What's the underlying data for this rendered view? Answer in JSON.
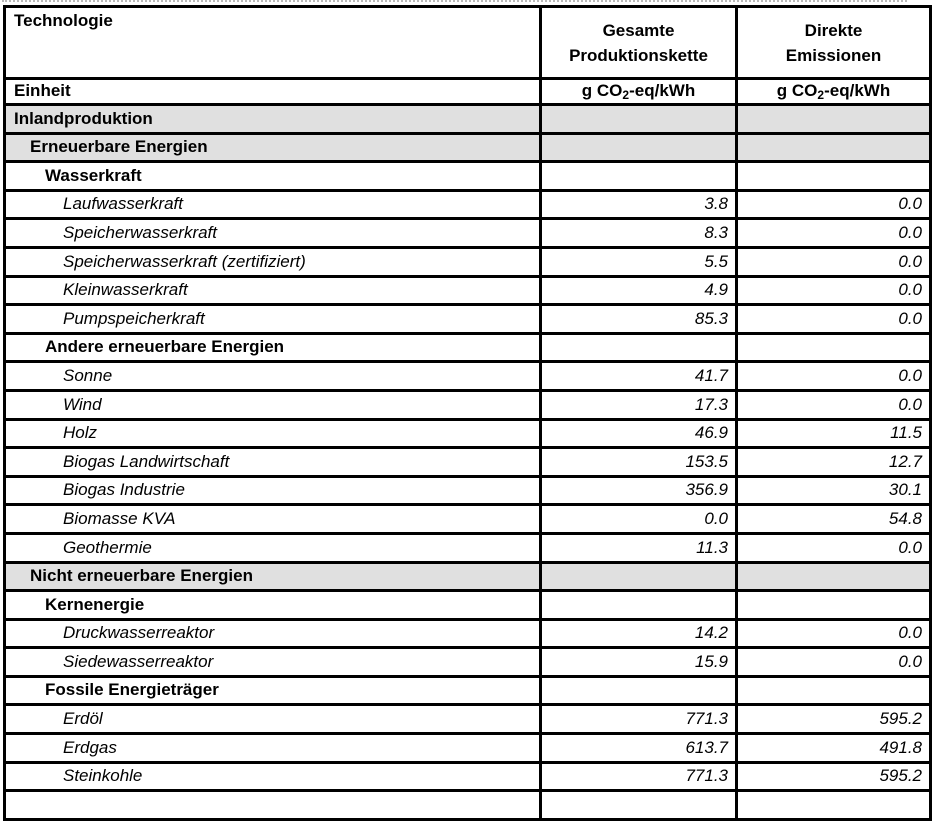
{
  "table": {
    "columns": {
      "technology": "Technologie",
      "total_chain_line1": "Gesamte",
      "total_chain_line2": "Produktionskette",
      "direct_line1": "Direkte",
      "direct_line2": "Emissionen"
    },
    "unit_row": {
      "label": "Einheit",
      "unit_pre": "g CO",
      "unit_sub": "2",
      "unit_post": "-eq/kWh"
    },
    "rows": [
      {
        "label": "Inlandproduktion",
        "style": "section",
        "level": 0,
        "total": "",
        "direct": ""
      },
      {
        "label": "Erneuerbare Energien",
        "style": "section",
        "level": 1,
        "total": "",
        "direct": ""
      },
      {
        "label": "Wasserkraft",
        "style": "group",
        "level": 2,
        "total": "",
        "direct": ""
      },
      {
        "label": "Laufwasserkraft",
        "style": "item",
        "level": 3,
        "total": "3.8",
        "direct": "0.0"
      },
      {
        "label": "Speicherwasserkraft",
        "style": "item",
        "level": 3,
        "total": "8.3",
        "direct": "0.0"
      },
      {
        "label": "Speicherwasserkraft (zertifiziert)",
        "style": "item",
        "level": 3,
        "total": "5.5",
        "direct": "0.0"
      },
      {
        "label": "Kleinwasserkraft",
        "style": "item",
        "level": 3,
        "total": "4.9",
        "direct": "0.0"
      },
      {
        "label": "Pumpspeicherkraft",
        "style": "item",
        "level": 3,
        "total": "85.3",
        "direct": "0.0"
      },
      {
        "label": "Andere erneuerbare Energien",
        "style": "group",
        "level": 2,
        "total": "",
        "direct": ""
      },
      {
        "label": "Sonne",
        "style": "item",
        "level": 3,
        "total": "41.7",
        "direct": "0.0"
      },
      {
        "label": "Wind",
        "style": "item",
        "level": 3,
        "total": "17.3",
        "direct": "0.0"
      },
      {
        "label": "Holz",
        "style": "item",
        "level": 3,
        "total": "46.9",
        "direct": "11.5"
      },
      {
        "label": "Biogas Landwirtschaft",
        "style": "item",
        "level": 3,
        "total": "153.5",
        "direct": "12.7"
      },
      {
        "label": "Biogas Industrie",
        "style": "item",
        "level": 3,
        "total": "356.9",
        "direct": "30.1"
      },
      {
        "label": "Biomasse KVA",
        "style": "item",
        "level": 3,
        "total": "0.0",
        "direct": "54.8"
      },
      {
        "label": "Geothermie",
        "style": "item",
        "level": 3,
        "total": "11.3",
        "direct": "0.0"
      },
      {
        "label": "Nicht erneuerbare Energien",
        "style": "section",
        "level": 1,
        "total": "",
        "direct": ""
      },
      {
        "label": "Kernenergie",
        "style": "group",
        "level": 2,
        "total": "",
        "direct": ""
      },
      {
        "label": "Druckwasserreaktor",
        "style": "item",
        "level": 3,
        "total": "14.2",
        "direct": "0.0"
      },
      {
        "label": "Siedewasserreaktor",
        "style": "item",
        "level": 3,
        "total": "15.9",
        "direct": "0.0"
      },
      {
        "label": "Fossile Energieträger",
        "style": "group",
        "level": 2,
        "total": "",
        "direct": ""
      },
      {
        "label": "Erdöl",
        "style": "item",
        "level": 3,
        "total": "771.3",
        "direct": "595.2"
      },
      {
        "label": "Erdgas",
        "style": "item",
        "level": 3,
        "total": "613.7",
        "direct": "491.8"
      },
      {
        "label": "Steinkohle",
        "style": "item",
        "level": 3,
        "total": "771.3",
        "direct": "595.2"
      },
      {
        "label": "",
        "style": "item",
        "level": 3,
        "total": "",
        "direct": ""
      }
    ]
  }
}
